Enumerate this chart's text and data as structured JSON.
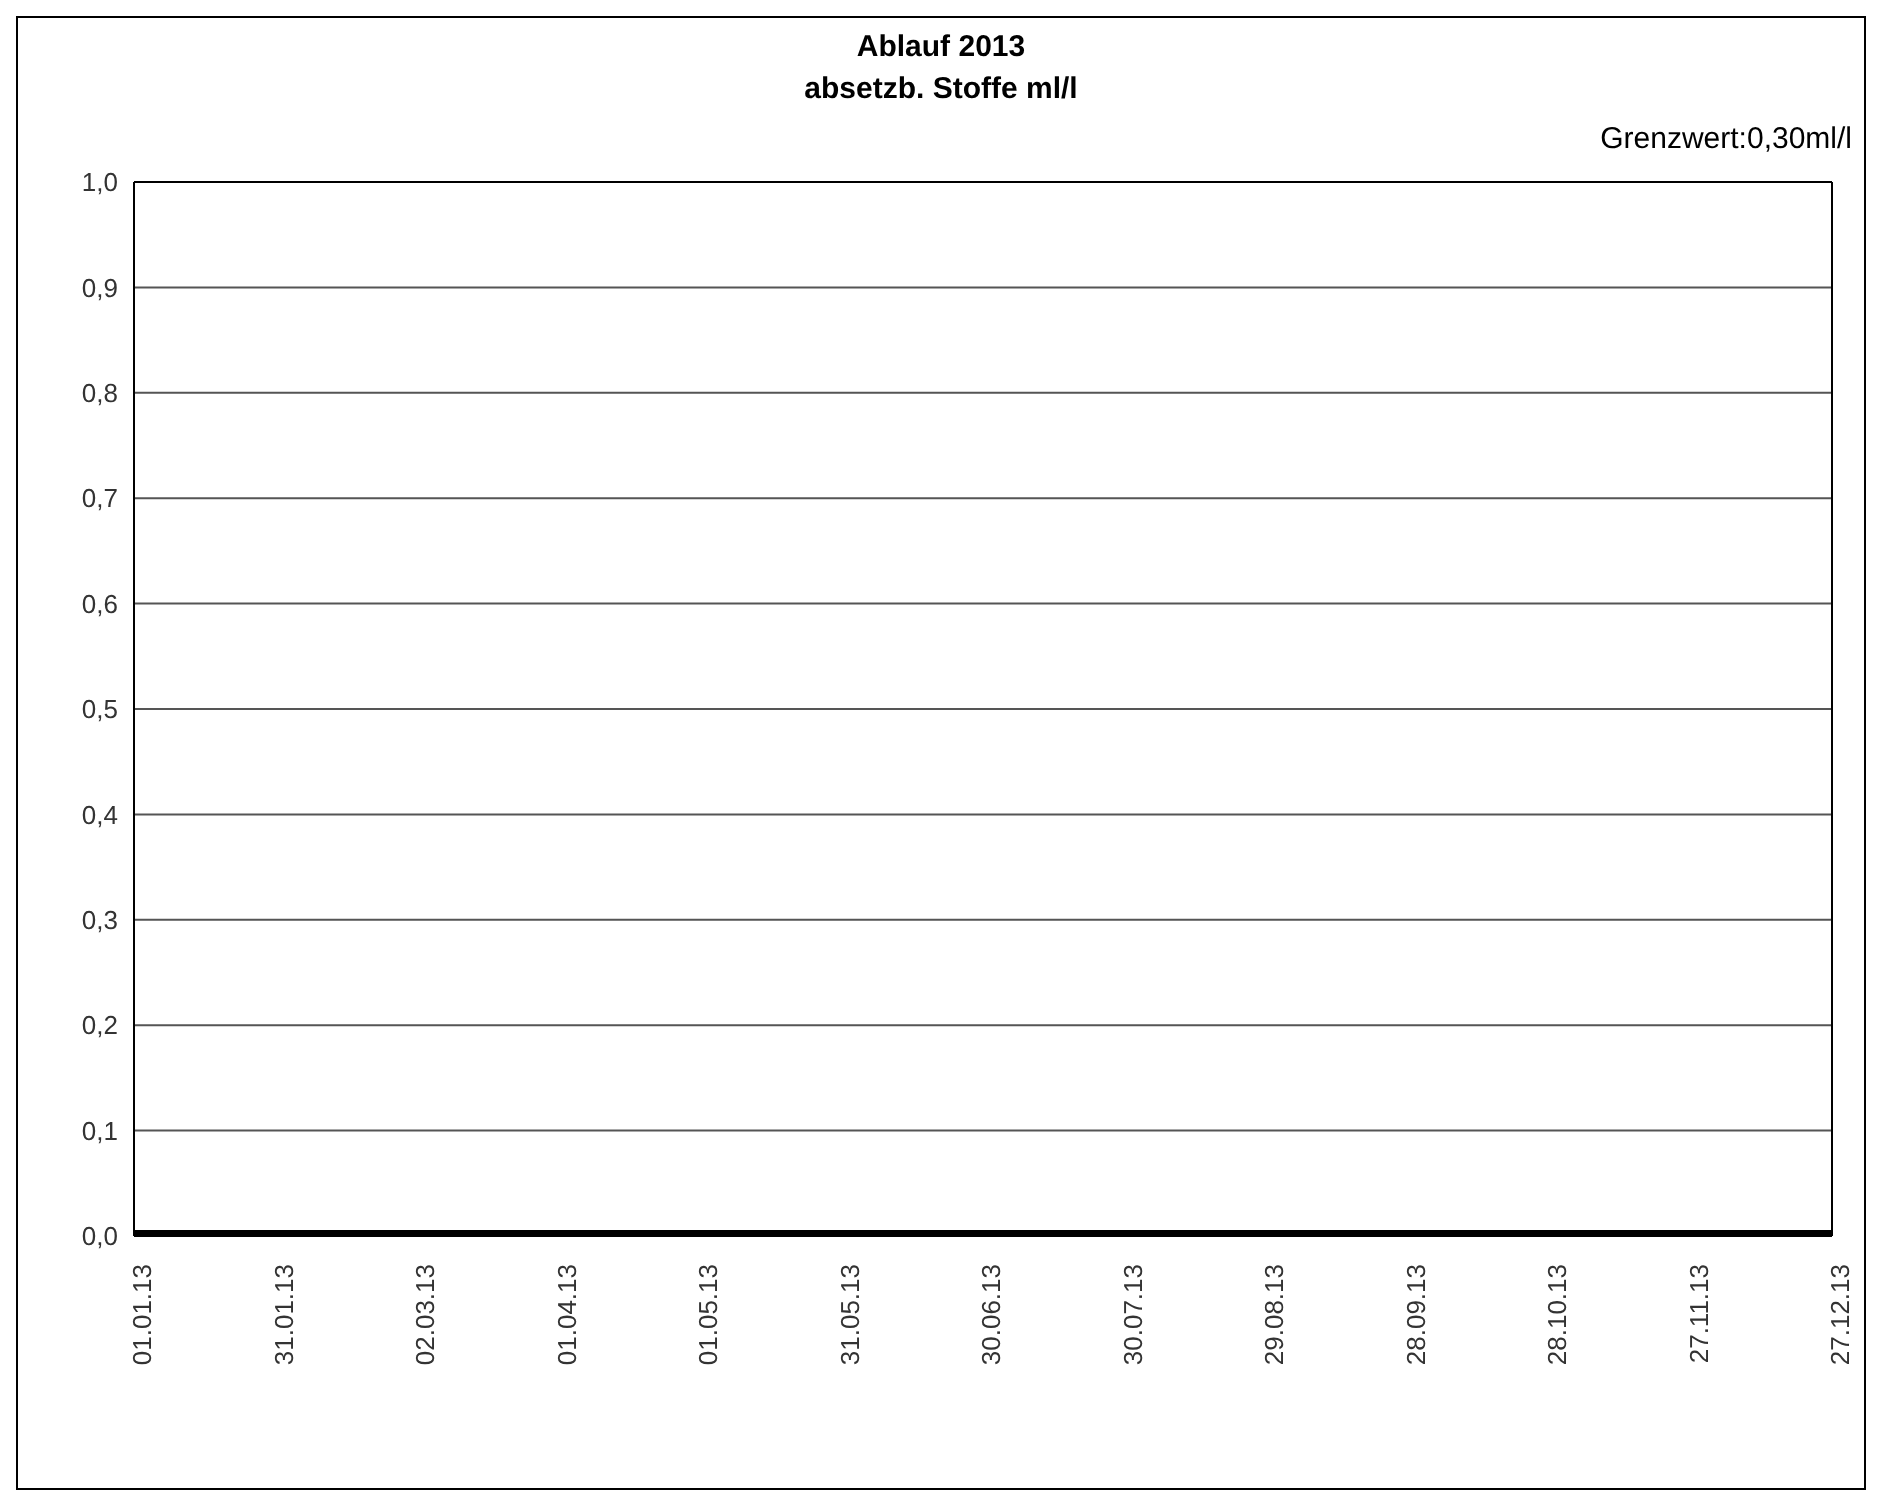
{
  "chart_data": {
    "type": "line",
    "title": "Ablauf 2013",
    "subtitle": "absetzb. Stoffe ml/l",
    "annotations": [
      "Grenzwert:0,30ml/l"
    ],
    "x": [
      "2013-01-01",
      "2013-01-31",
      "2013-03-02",
      "2013-04-01",
      "2013-05-01",
      "2013-05-31",
      "2013-06-30",
      "2013-07-30",
      "2013-08-29",
      "2013-09-28",
      "2013-10-28",
      "2013-11-27",
      "2013-12-27"
    ],
    "series": [
      {
        "color": "#000000",
        "values": [
          0,
          0,
          0,
          0,
          0,
          0,
          0,
          0,
          0,
          0,
          0,
          0,
          0
        ]
      }
    ],
    "xlim": [
      "2013-01-01",
      "2013-12-27"
    ],
    "xticks": [
      {
        "value": "2013-01-01",
        "label": "01.01.13"
      },
      {
        "value": "2013-01-31",
        "label": "31.01.13"
      },
      {
        "value": "2013-03-02",
        "label": "02.03.13"
      },
      {
        "value": "2013-04-01",
        "label": "01.04.13"
      },
      {
        "value": "2013-05-01",
        "label": "01.05.13"
      },
      {
        "value": "2013-05-31",
        "label": "31.05.13"
      },
      {
        "value": "2013-06-30",
        "label": "30.06.13"
      },
      {
        "value": "2013-07-30",
        "label": "30.07.13"
      },
      {
        "value": "2013-08-29",
        "label": "29.08.13"
      },
      {
        "value": "2013-09-28",
        "label": "28.09.13"
      },
      {
        "value": "2013-10-28",
        "label": "28.10.13"
      },
      {
        "value": "2013-11-27",
        "label": "27.11.13"
      },
      {
        "value": "2013-12-27",
        "label": "27.12.13"
      }
    ],
    "ylim": [
      0,
      1
    ],
    "yticks": [
      {
        "value": 0,
        "label": "0,0"
      },
      {
        "value": 0.1,
        "label": "0,1"
      },
      {
        "value": 0.2,
        "label": "0,2"
      },
      {
        "value": 0.3,
        "label": "0,3"
      },
      {
        "value": 0.4,
        "label": "0,4"
      },
      {
        "value": 0.5,
        "label": "0,5"
      },
      {
        "value": 0.6,
        "label": "0,6"
      },
      {
        "value": 0.7,
        "label": "0,7"
      },
      {
        "value": 0.8,
        "label": "0,8"
      },
      {
        "value": 0.9,
        "label": "0,9"
      },
      {
        "value": 1,
        "label": "1,0"
      }
    ],
    "grid": "y",
    "legend": false,
    "marker": "none",
    "line_style": "solid"
  }
}
